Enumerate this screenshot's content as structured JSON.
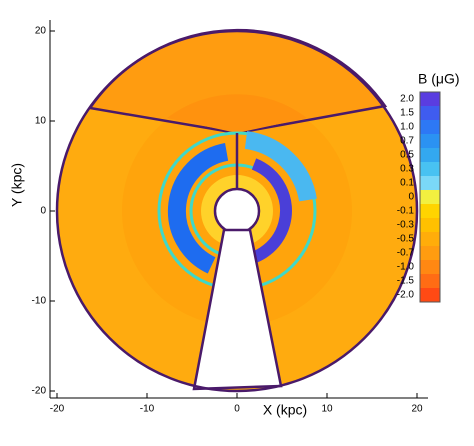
{
  "chart_data": {
    "type": "map",
    "xlabel": "X (kpc)",
    "ylabel": "Y (kpc)",
    "xlim": [
      -20,
      20
    ],
    "ylim": [
      -20,
      20
    ],
    "xticks": [
      -20,
      -10,
      0,
      10,
      20
    ],
    "yticks": [
      -20,
      -10,
      0,
      10,
      20
    ],
    "colorbar": {
      "title": "B (μG)",
      "ticks": [
        {
          "value": 2,
          "label": "2.0"
        },
        1.5,
        {
          "value": 1,
          "label": "1.0"
        },
        0.7,
        0.5,
        0.3,
        0.1,
        0,
        -0.1,
        -0.3,
        -0.5,
        -0.7,
        {
          "value": -1,
          "label": "-1.0"
        },
        -1.5,
        {
          "value": -2,
          "label": "-2.0"
        }
      ],
      "colors": [
        "#5a3de0",
        "#3f5cf0",
        "#2d78f5",
        "#2b92f2",
        "#33a8f0",
        "#48c2f2",
        "#7ad8f8",
        "#f2f040",
        "#ffd400",
        "#ffc000",
        "#ffad0a",
        "#ff9c10",
        "#ff8812",
        "#ff6c14",
        "#ff4a14"
      ]
    }
  }
}
